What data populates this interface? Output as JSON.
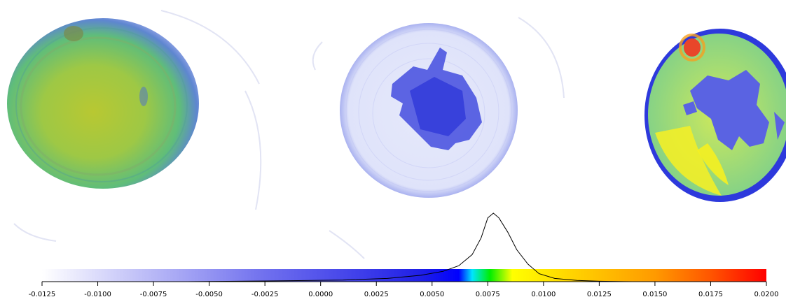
{
  "panels": [
    {
      "name": "volume-render-opaque",
      "rendering": "green-yellow volume with blue rim"
    },
    {
      "name": "volume-render-sparse",
      "rendering": "blue point cloud with dense central cluster"
    },
    {
      "name": "cross-section-slice",
      "rendering": "jet-colored slice with red hotspot"
    }
  ],
  "colorbar": {
    "range": [
      -0.0125,
      0.02
    ],
    "ticks": [
      "-0.0125",
      "-0.0100",
      "-0.0075",
      "-0.0050",
      "-0.0025",
      "0.0000",
      "0.0025",
      "0.0050",
      "0.0075",
      "0.0100",
      "0.0125",
      "0.0150",
      "0.0175",
      "0.0200"
    ],
    "tick_values": [
      -0.0125,
      -0.01,
      -0.0075,
      -0.005,
      -0.0025,
      0,
      0.0025,
      0.005,
      0.0075,
      0.01,
      0.0125,
      0.015,
      0.0175,
      0.02
    ],
    "stops": [
      {
        "value": -0.0125,
        "color": "#ffffff"
      },
      {
        "value": -0.0025,
        "color": "#7070ee"
      },
      {
        "value": 0.0045,
        "color": "#1f1fe6"
      },
      {
        "value": 0.0062,
        "color": "#0000ff"
      },
      {
        "value": 0.0068,
        "color": "#00e5ff"
      },
      {
        "value": 0.0076,
        "color": "#00ee00"
      },
      {
        "value": 0.0086,
        "color": "#ffff00"
      },
      {
        "value": 0.0115,
        "color": "#ffd000"
      },
      {
        "value": 0.015,
        "color": "#ff9a00"
      },
      {
        "value": 0.0175,
        "color": "#ff5500"
      },
      {
        "value": 0.02,
        "color": "#ff0000"
      }
    ]
  },
  "histogram": {
    "peak_value": 0.00775,
    "points": [
      [
        -0.0125,
        0.0
      ],
      [
        -0.006,
        0.0
      ],
      [
        -0.002,
        0.01
      ],
      [
        0.001,
        0.02
      ],
      [
        0.003,
        0.04
      ],
      [
        0.0045,
        0.08
      ],
      [
        0.0055,
        0.13
      ],
      [
        0.0062,
        0.2
      ],
      [
        0.0068,
        0.34
      ],
      [
        0.0072,
        0.55
      ],
      [
        0.0075,
        0.8
      ],
      [
        0.00775,
        0.86
      ],
      [
        0.008,
        0.8
      ],
      [
        0.0084,
        0.62
      ],
      [
        0.0088,
        0.4
      ],
      [
        0.0093,
        0.22
      ],
      [
        0.0098,
        0.1
      ],
      [
        0.0105,
        0.04
      ],
      [
        0.0115,
        0.015
      ],
      [
        0.0125,
        0.005
      ],
      [
        0.014,
        0.0
      ],
      [
        0.02,
        0.0
      ]
    ]
  }
}
